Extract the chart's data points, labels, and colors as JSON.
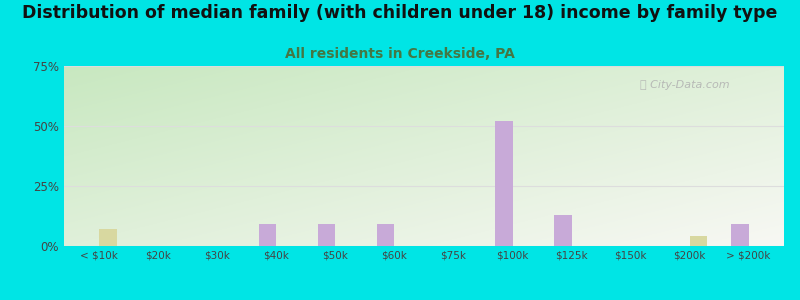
{
  "title": "Distribution of median family (with children under 18) income by family type",
  "subtitle": "All residents in Creekside, PA",
  "categories": [
    "< $10k",
    "$20k",
    "$30k",
    "$40k",
    "$50k",
    "$60k",
    "$75k",
    "$100k",
    "$125k",
    "$150k",
    "$200k",
    "> $200k"
  ],
  "married_couple": [
    0,
    0,
    0,
    9,
    9,
    9,
    0,
    52,
    13,
    0,
    0,
    9
  ],
  "female_no_husband": [
    7,
    0,
    0,
    0,
    0,
    0,
    0,
    0,
    0,
    0,
    4,
    0
  ],
  "married_color": "#c8aad8",
  "female_color": "#d8d8a0",
  "outer_bg": "#00e5e5",
  "chart_bg_topleft": "#c8e8c0",
  "chart_bg_bottomright": "#f8f8f4",
  "title_fontsize": 12.5,
  "subtitle_fontsize": 10,
  "subtitle_color": "#447744",
  "watermark": "ⓘ City-Data.com",
  "ylim": [
    0,
    75
  ],
  "yticks": [
    0,
    25,
    50,
    75
  ],
  "bar_width": 0.3,
  "grid_color": "#dddddd"
}
